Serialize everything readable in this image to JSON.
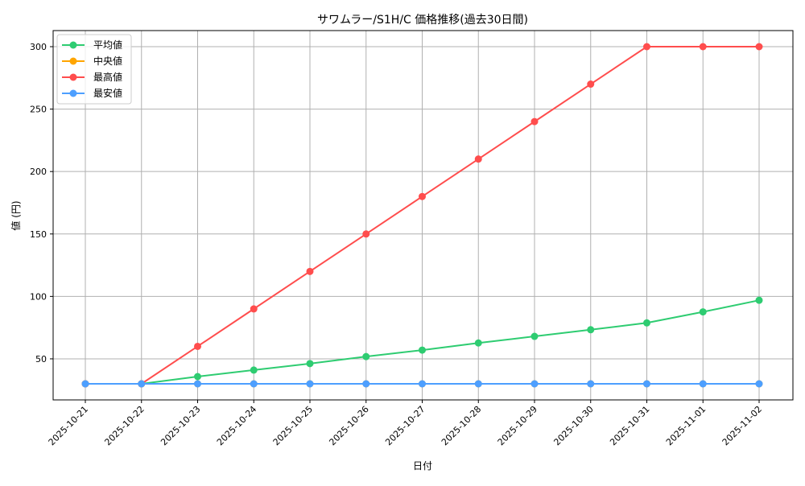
{
  "chart_data": {
    "type": "line",
    "title": "サワムラー/S1H/C 価格推移(過去30日間)",
    "xlabel": "日付",
    "ylabel": "値 (円)",
    "ylim": [
      15,
      313
    ],
    "yticks": [
      50,
      100,
      150,
      200,
      250,
      300
    ],
    "grid": true,
    "legend_position": "top-left",
    "categories": [
      "2025-10-21",
      "2025-10-22",
      "2025-10-23",
      "2025-10-24",
      "2025-10-25",
      "2025-10-26",
      "2025-10-27",
      "2025-10-28",
      "2025-10-29",
      "2025-10-30",
      "2025-10-31",
      "2025-11-01",
      "2025-11-02"
    ],
    "series": [
      {
        "name": "平均値",
        "color": "#2ecc71",
        "values": [
          30,
          30,
          35.8,
          41,
          46.2,
          51.8,
          57,
          62.7,
          68,
          73.3,
          78.8,
          87.6,
          96.9
        ]
      },
      {
        "name": "中央値",
        "color": "#ffa500",
        "values": [
          30,
          30,
          30,
          30,
          30,
          30,
          30,
          30,
          30,
          30,
          30,
          30,
          30
        ]
      },
      {
        "name": "最高値",
        "color": "#ff4d4d",
        "values": [
          30,
          30,
          60,
          90,
          120,
          150,
          180,
          210,
          240,
          270,
          300,
          300,
          300
        ]
      },
      {
        "name": "最安値",
        "color": "#4d9fff",
        "values": [
          30,
          30,
          30,
          30,
          30,
          30,
          30,
          30,
          30,
          30,
          30,
          30,
          30
        ]
      }
    ]
  }
}
